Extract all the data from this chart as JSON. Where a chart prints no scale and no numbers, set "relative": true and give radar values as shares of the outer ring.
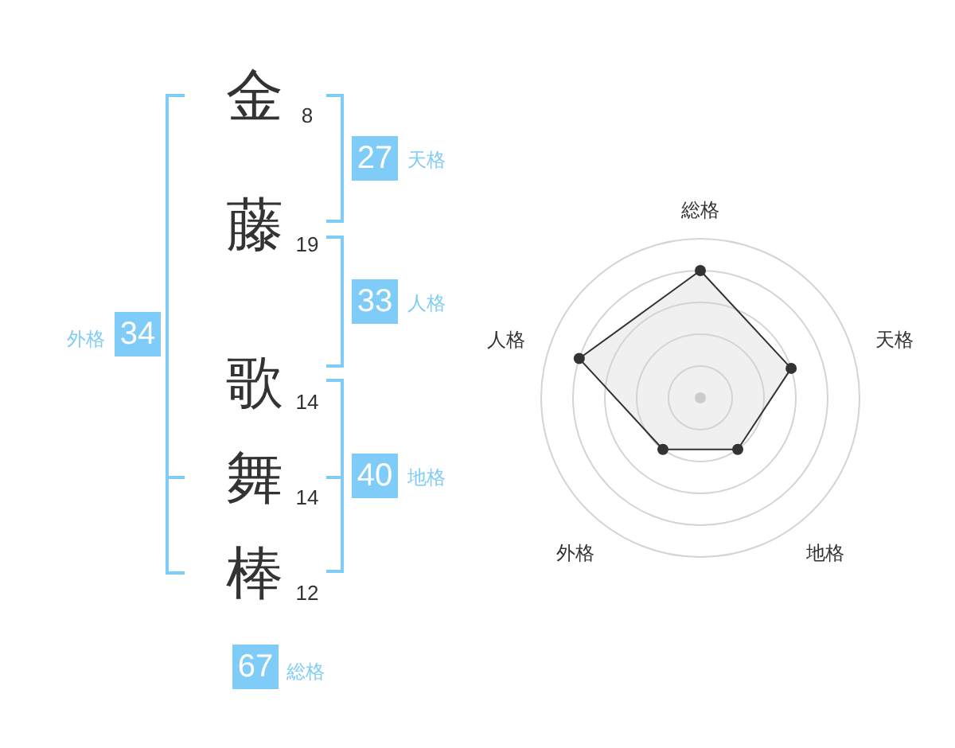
{
  "chart_data": [
    {
      "type": "other",
      "categories": [
        "金",
        "藤",
        "歌",
        "舞",
        "棒"
      ],
      "values": [
        8,
        19,
        14,
        14,
        12
      ],
      "data_labels": true
    },
    {
      "type": "other",
      "categories": [
        "天格",
        "人格",
        "地格",
        "外格",
        "総格"
      ],
      "values": [
        27,
        33,
        40,
        34,
        67
      ],
      "data_labels": true,
      "color": "#80ccf8"
    },
    {
      "type": "radar",
      "categories": [
        "総格",
        "天格",
        "地格",
        "外格",
        "人格"
      ],
      "relative": true,
      "grid": true,
      "marker": "circle",
      "series": [
        {
          "color": "#333333",
          "values": [
            0.8,
            0.6,
            0.4,
            0.4,
            0.8
          ]
        }
      ]
    }
  ]
}
